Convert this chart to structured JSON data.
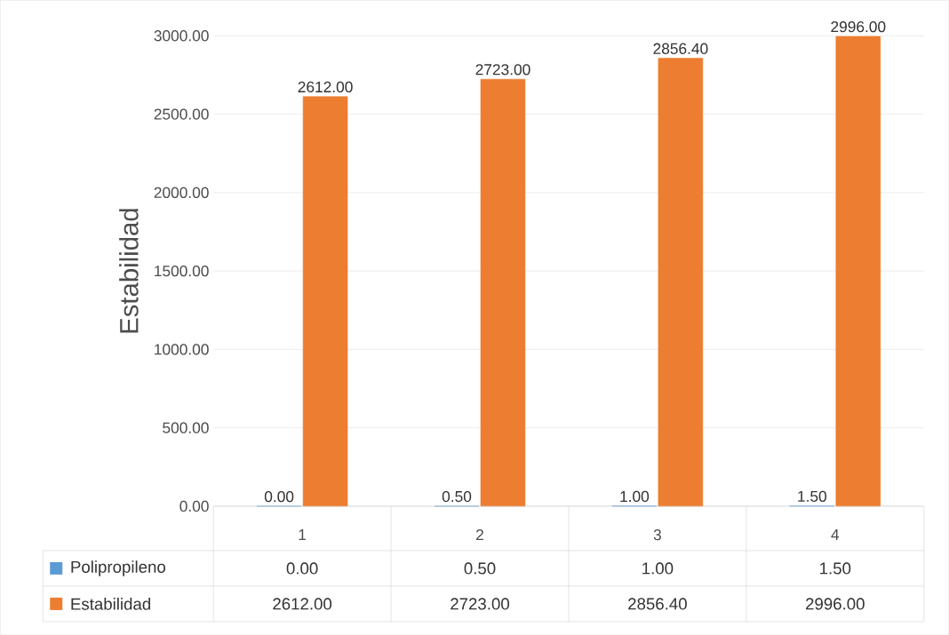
{
  "chart_data": {
    "type": "bar",
    "ylabel": "Estabilidad",
    "categories": [
      "1",
      "2",
      "3",
      "4"
    ],
    "series": [
      {
        "name": "Polipropileno",
        "color": "#5b9bd5",
        "values": [
          0,
          0.5,
          1,
          1.5
        ],
        "value_labels": [
          "0.00",
          "0.50",
          "1.00",
          "1.50"
        ]
      },
      {
        "name": "Estabilidad",
        "color": "#ed7d31",
        "values": [
          2612,
          2723,
          2856.4,
          2996
        ],
        "value_labels": [
          "2612.00",
          "2723.00",
          "2856.40",
          "2996.00"
        ]
      }
    ],
    "ylim": [
      0,
      3000
    ],
    "yticks": [
      {
        "value": 0,
        "label": "0.00"
      },
      {
        "value": 500,
        "label": "500.00"
      },
      {
        "value": 1000,
        "label": "1000.00"
      },
      {
        "value": 1500,
        "label": "1500.00"
      },
      {
        "value": 2000,
        "label": "2000.00"
      },
      {
        "value": 2500,
        "label": "2500.00"
      },
      {
        "value": 3000,
        "label": "3000.00"
      }
    ],
    "grid": "y",
    "legend": "bottom"
  }
}
